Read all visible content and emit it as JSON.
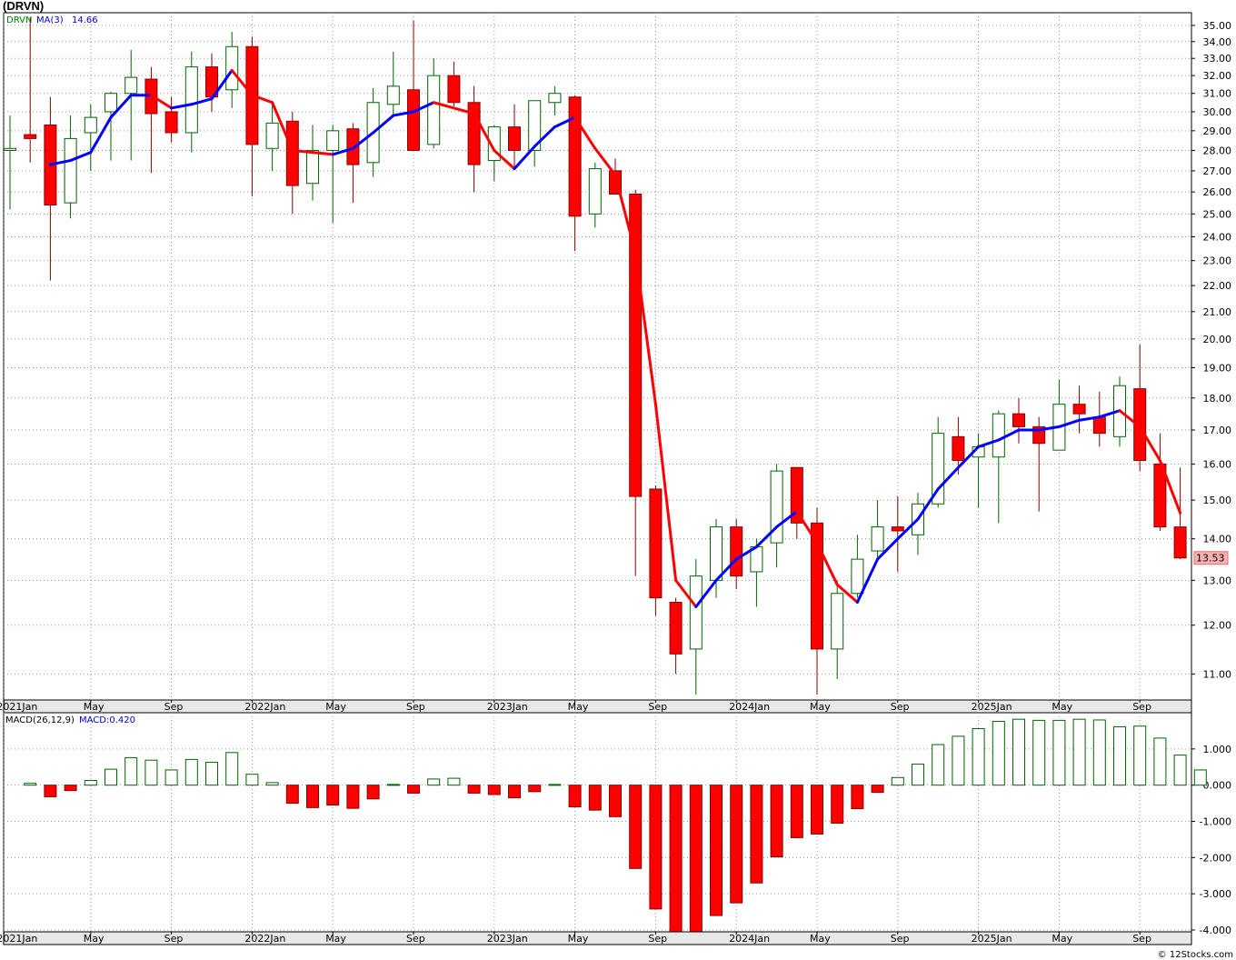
{
  "title": "(DRVN)",
  "credit": "© 12Stocks.com",
  "chart_data": [
    {
      "type": "candlestick",
      "symbol": "DRVN",
      "legend": {
        "symbol_label": "DRVN",
        "ma_label": "MA(3)",
        "ma_value": "14.66"
      },
      "last_price": "13.53",
      "colors": {
        "up": "#006400",
        "down": "#ff0000",
        "ma_up": "#0000ff",
        "ma_down": "#ff0000",
        "last_price_bg": "#f8b0b0"
      },
      "scale": "log",
      "ylim": [
        10.5,
        35.8
      ],
      "y_ticks": [
        {
          "v": 11,
          "label": "11.00"
        },
        {
          "v": 12,
          "label": "12.00"
        },
        {
          "v": 13,
          "label": "13.00"
        },
        {
          "v": 14,
          "label": "14.00"
        },
        {
          "v": 15,
          "label": "15.00"
        },
        {
          "v": 16,
          "label": "16.00"
        },
        {
          "v": 17,
          "label": "17.00"
        },
        {
          "v": 18,
          "label": "18.00"
        },
        {
          "v": 19,
          "label": "19.00"
        },
        {
          "v": 20,
          "label": "20.00"
        },
        {
          "v": 21,
          "label": "21.00"
        },
        {
          "v": 22,
          "label": "22.00"
        },
        {
          "v": 23,
          "label": "23.00"
        },
        {
          "v": 24,
          "label": "24.00"
        },
        {
          "v": 25,
          "label": "25.00"
        },
        {
          "v": 26,
          "label": "26.00"
        },
        {
          "v": 27,
          "label": "27.00"
        },
        {
          "v": 28,
          "label": "28.00"
        },
        {
          "v": 29,
          "label": "29.00"
        },
        {
          "v": 30,
          "label": "30.00"
        },
        {
          "v": 31,
          "label": "31.00"
        },
        {
          "v": 32,
          "label": "32.00"
        },
        {
          "v": 33,
          "label": "33.00"
        },
        {
          "v": 34,
          "label": "34.00"
        },
        {
          "v": 35,
          "label": "35.00"
        }
      ],
      "x_ticks": [
        {
          "i": -0.3,
          "label": "2021Jan"
        },
        {
          "i": 4,
          "label": "May"
        },
        {
          "i": 8,
          "label": "Sep"
        },
        {
          "i": 12,
          "label": "2022Jan"
        },
        {
          "i": 16,
          "label": "May"
        },
        {
          "i": 20,
          "label": "Sep"
        },
        {
          "i": 24,
          "label": "2023Jan"
        },
        {
          "i": 28,
          "label": "May"
        },
        {
          "i": 32,
          "label": "Sep"
        },
        {
          "i": 36,
          "label": "2024Jan"
        },
        {
          "i": 40,
          "label": "May"
        },
        {
          "i": 44,
          "label": "Sep"
        },
        {
          "i": 48,
          "label": "2025Jan"
        },
        {
          "i": 52,
          "label": "May"
        },
        {
          "i": 56,
          "label": "Sep"
        }
      ],
      "candles": [
        {
          "o": 28.0,
          "h": 29.8,
          "l": 25.2,
          "c": 28.1
        },
        {
          "o": 28.8,
          "h": 35.5,
          "l": 27.4,
          "c": 28.6
        },
        {
          "o": 29.3,
          "h": 30.8,
          "l": 22.2,
          "c": 25.4
        },
        {
          "o": 25.5,
          "h": 29.8,
          "l": 24.8,
          "c": 28.6
        },
        {
          "o": 28.9,
          "h": 30.4,
          "l": 27.0,
          "c": 29.7
        },
        {
          "o": 30.0,
          "h": 31.1,
          "l": 27.5,
          "c": 31.0
        },
        {
          "o": 31.0,
          "h": 33.5,
          "l": 27.5,
          "c": 31.9
        },
        {
          "o": 31.8,
          "h": 32.5,
          "l": 26.9,
          "c": 29.9
        },
        {
          "o": 30.0,
          "h": 30.8,
          "l": 28.4,
          "c": 28.9
        },
        {
          "o": 28.9,
          "h": 33.4,
          "l": 27.9,
          "c": 32.5
        },
        {
          "o": 32.5,
          "h": 33.3,
          "l": 30.0,
          "c": 30.8
        },
        {
          "o": 31.2,
          "h": 34.6,
          "l": 30.2,
          "c": 33.7
        },
        {
          "o": 33.7,
          "h": 34.3,
          "l": 25.8,
          "c": 28.3
        },
        {
          "o": 28.1,
          "h": 30.6,
          "l": 27.0,
          "c": 29.4
        },
        {
          "o": 29.5,
          "h": 30.0,
          "l": 25.0,
          "c": 26.3
        },
        {
          "o": 26.4,
          "h": 29.3,
          "l": 25.6,
          "c": 28.0
        },
        {
          "o": 28.0,
          "h": 29.3,
          "l": 24.6,
          "c": 29.0
        },
        {
          "o": 29.1,
          "h": 29.4,
          "l": 25.5,
          "c": 27.3
        },
        {
          "o": 27.4,
          "h": 31.3,
          "l": 26.7,
          "c": 30.5
        },
        {
          "o": 30.4,
          "h": 33.4,
          "l": 29.8,
          "c": 31.4
        },
        {
          "o": 31.2,
          "h": 35.3,
          "l": 28.0,
          "c": 28.0
        },
        {
          "o": 28.3,
          "h": 33.0,
          "l": 28.1,
          "c": 32.0
        },
        {
          "o": 32.0,
          "h": 32.8,
          "l": 30.3,
          "c": 30.5
        },
        {
          "o": 30.5,
          "h": 31.4,
          "l": 26.0,
          "c": 27.3
        },
        {
          "o": 27.5,
          "h": 29.3,
          "l": 26.5,
          "c": 29.2
        },
        {
          "o": 29.2,
          "h": 30.4,
          "l": 27.2,
          "c": 28.0
        },
        {
          "o": 28.0,
          "h": 30.6,
          "l": 27.2,
          "c": 30.6
        },
        {
          "o": 30.5,
          "h": 31.4,
          "l": 29.8,
          "c": 31.0
        },
        {
          "o": 30.8,
          "h": 30.9,
          "l": 23.4,
          "c": 24.9
        },
        {
          "o": 25.0,
          "h": 27.4,
          "l": 24.4,
          "c": 27.1
        },
        {
          "o": 27.0,
          "h": 27.6,
          "l": 25.9,
          "c": 25.9
        },
        {
          "o": 25.9,
          "h": 26.1,
          "l": 13.1,
          "c": 15.1
        },
        {
          "o": 15.3,
          "h": 15.4,
          "l": 12.2,
          "c": 12.6
        },
        {
          "o": 12.5,
          "h": 12.6,
          "l": 11.0,
          "c": 11.4
        },
        {
          "o": 11.5,
          "h": 13.5,
          "l": 10.6,
          "c": 13.1
        },
        {
          "o": 13.0,
          "h": 14.5,
          "l": 12.6,
          "c": 14.3
        },
        {
          "o": 14.3,
          "h": 14.5,
          "l": 12.8,
          "c": 13.1
        },
        {
          "o": 13.2,
          "h": 14.0,
          "l": 12.4,
          "c": 13.8
        },
        {
          "o": 13.9,
          "h": 16.0,
          "l": 13.3,
          "c": 15.8
        },
        {
          "o": 15.9,
          "h": 15.9,
          "l": 14.0,
          "c": 14.4
        },
        {
          "o": 14.4,
          "h": 14.8,
          "l": 10.6,
          "c": 11.5
        },
        {
          "o": 11.5,
          "h": 13.0,
          "l": 10.9,
          "c": 12.7
        },
        {
          "o": 12.7,
          "h": 14.1,
          "l": 12.6,
          "c": 13.5
        },
        {
          "o": 13.7,
          "h": 15.0,
          "l": 13.5,
          "c": 14.3
        },
        {
          "o": 14.3,
          "h": 15.1,
          "l": 13.2,
          "c": 14.2
        },
        {
          "o": 14.1,
          "h": 15.2,
          "l": 13.6,
          "c": 14.9
        },
        {
          "o": 14.9,
          "h": 17.4,
          "l": 14.8,
          "c": 16.9
        },
        {
          "o": 16.8,
          "h": 17.4,
          "l": 15.7,
          "c": 16.1
        },
        {
          "o": 16.2,
          "h": 16.9,
          "l": 14.8,
          "c": 16.5
        },
        {
          "o": 16.2,
          "h": 17.6,
          "l": 14.4,
          "c": 17.5
        },
        {
          "o": 17.5,
          "h": 18.0,
          "l": 16.6,
          "c": 17.1
        },
        {
          "o": 17.1,
          "h": 17.4,
          "l": 14.7,
          "c": 16.6
        },
        {
          "o": 16.4,
          "h": 18.6,
          "l": 16.4,
          "c": 17.8
        },
        {
          "o": 17.8,
          "h": 18.4,
          "l": 16.9,
          "c": 17.5
        },
        {
          "o": 17.4,
          "h": 18.2,
          "l": 16.5,
          "c": 16.9
        },
        {
          "o": 16.8,
          "h": 18.7,
          "l": 16.5,
          "c": 18.4
        },
        {
          "o": 18.3,
          "h": 19.8,
          "l": 15.8,
          "c": 16.1
        },
        {
          "o": 16.0,
          "h": 16.9,
          "l": 14.2,
          "c": 14.3
        },
        {
          "o": 14.3,
          "h": 15.9,
          "l": 13.5,
          "c": 13.53
        }
      ],
      "ma": [
        null,
        null,
        27.3,
        27.5,
        27.9,
        29.7,
        30.9,
        30.9,
        30.2,
        30.4,
        30.7,
        32.3,
        30.9,
        30.5,
        28.0,
        27.9,
        27.8,
        28.1,
        28.9,
        29.8,
        30.0,
        30.5,
        30.2,
        29.9,
        28.0,
        27.1,
        28.2,
        29.2,
        29.7,
        28.1,
        26.8,
        23.3,
        17.8,
        13.0,
        12.4,
        13.0,
        13.5,
        13.8,
        14.3,
        14.7,
        13.9,
        12.9,
        12.5,
        13.5,
        14.0,
        14.5,
        15.3,
        15.9,
        16.5,
        16.7,
        17.0,
        17.0,
        17.1,
        17.3,
        17.4,
        17.6,
        17.1,
        16.1,
        14.66
      ]
    },
    {
      "type": "bar",
      "title": "MACD(26,12,9)",
      "legend": {
        "label": "MACD:0.420"
      },
      "ylim": [
        -4.05,
        2.0
      ],
      "y_ticks": [
        {
          "v": 1,
          "label": "1.000"
        },
        {
          "v": 0,
          "label": "0.000"
        },
        {
          "v": -1,
          "label": "-1.000"
        },
        {
          "v": -2,
          "label": "-2.000"
        },
        {
          "v": -3,
          "label": "-3.000"
        },
        {
          "v": -4,
          "label": "-4.000"
        }
      ],
      "values": [
        0.05,
        -0.32,
        -0.15,
        0.13,
        0.44,
        0.76,
        0.69,
        0.42,
        0.71,
        0.63,
        0.9,
        0.3,
        0.07,
        -0.5,
        -0.62,
        -0.55,
        -0.64,
        -0.38,
        0.02,
        -0.22,
        0.17,
        0.19,
        -0.22,
        -0.26,
        -0.35,
        -0.18,
        0.02,
        -0.6,
        -0.69,
        -0.87,
        -2.3,
        -3.42,
        -4.05,
        -4.05,
        -3.6,
        -3.25,
        -2.7,
        -1.98,
        -1.45,
        -1.35,
        -1.05,
        -0.65,
        -0.2,
        0.21,
        0.58,
        1.12,
        1.35,
        1.56,
        1.76,
        1.82,
        1.79,
        1.79,
        1.82,
        1.8,
        1.61,
        1.63,
        1.3,
        0.83,
        0.42
      ]
    }
  ]
}
